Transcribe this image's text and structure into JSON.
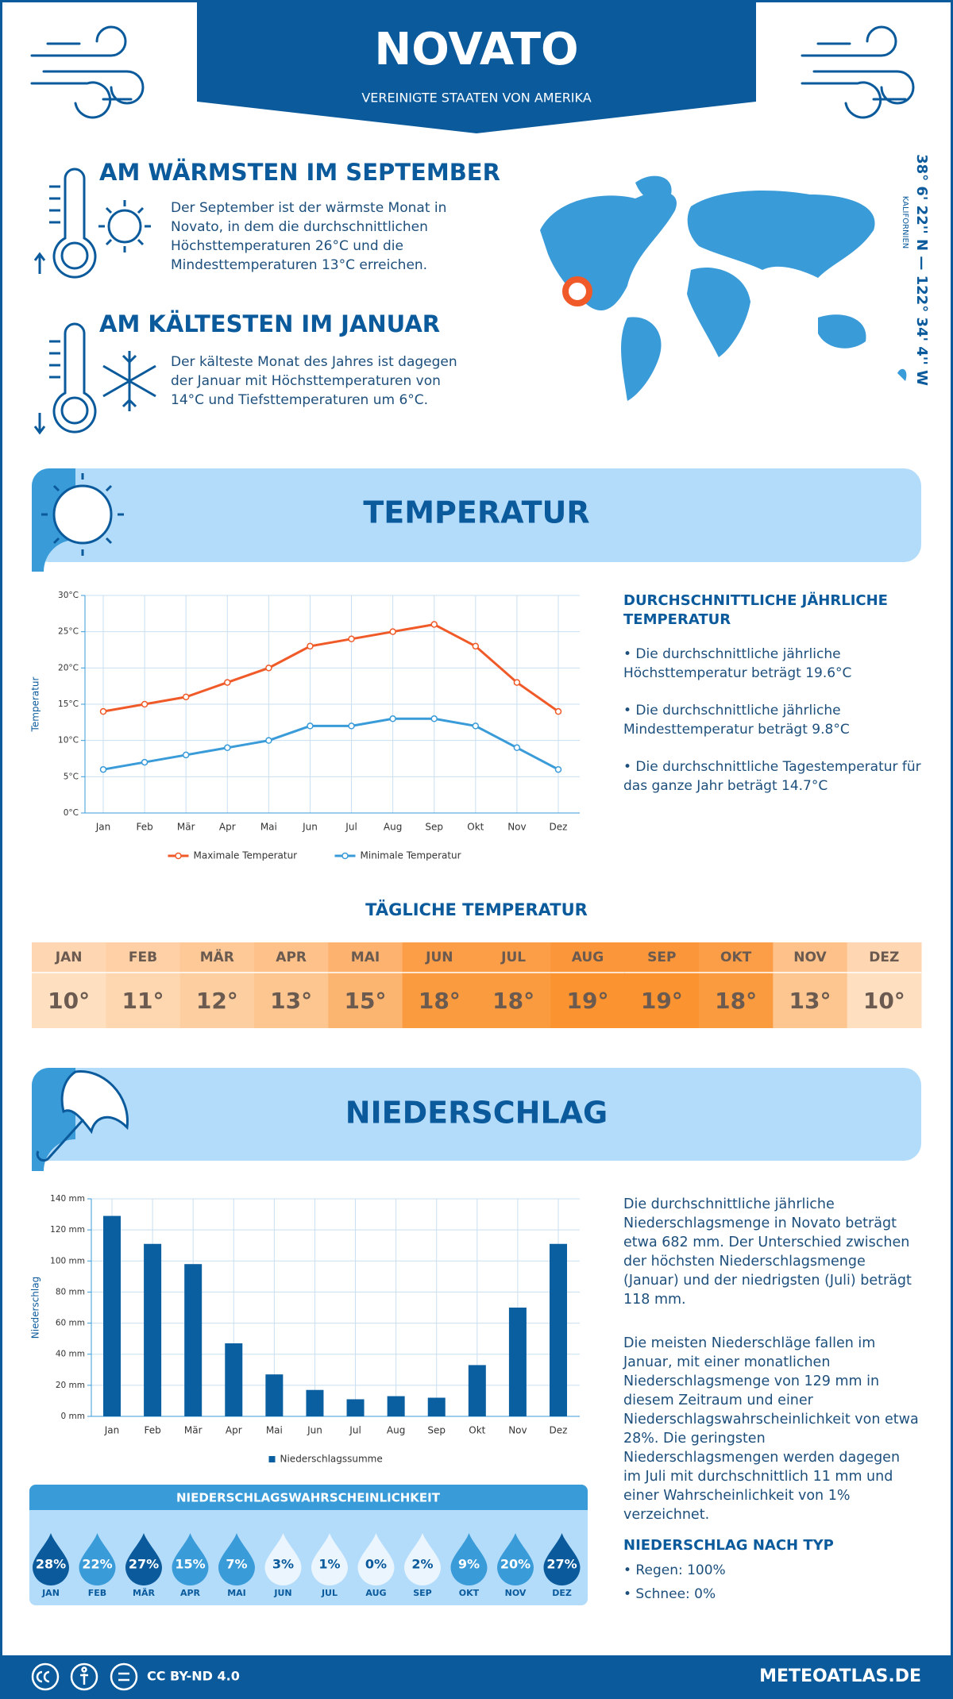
{
  "header": {
    "title": "NOVATO",
    "subtitle": "VEREINIGTE STAATEN VON AMERIKA"
  },
  "warmest": {
    "title": "AM WÄRMSTEN IM SEPTEMBER",
    "text": "Der September ist der wärmste Monat in Novato, in dem die durchschnittlichen Höchsttemperaturen 26°C und die Mindesttemperaturen 13°C erreichen."
  },
  "coldest": {
    "title": "AM KÄLTESTEN IM JANUAR",
    "text": "Der kälteste Monat des Jahres ist dagegen der Januar mit Höchsttemperaturen von 14°C und Tiefsttemperaturen um 6°C."
  },
  "location": {
    "coordinates": "38° 6' 22'' N — 122° 34' 4'' W",
    "region": "KALIFORNIEN"
  },
  "temperature": {
    "title": "TEMPERATUR",
    "stats_title": "DURCHSCHNITTLICHE JÄHRLICHE TEMPERATUR",
    "stats": [
      "• Die durchschnittliche jährliche Höchsttemperatur beträgt 19.6°C",
      "• Die durchschnittliche jährliche Mindesttemperatur beträgt 9.8°C",
      "• Die durchschnittliche Tagestemperatur für das ganze Jahr beträgt 14.7°C"
    ]
  },
  "chart_data": [
    {
      "type": "line",
      "ylabel": "Temperatur",
      "categories": [
        "Jan",
        "Feb",
        "Mär",
        "Apr",
        "Mai",
        "Jun",
        "Jul",
        "Aug",
        "Sep",
        "Okt",
        "Nov",
        "Dez"
      ],
      "series": [
        {
          "name": "Maximale Temperatur",
          "color": "#f05a28",
          "values": [
            14,
            15,
            16,
            18,
            20,
            23,
            24,
            25,
            26,
            23,
            18,
            14
          ]
        },
        {
          "name": "Minimale Temperatur",
          "color": "#3a9bd9",
          "values": [
            6,
            7,
            8,
            9,
            10,
            12,
            12,
            13,
            13,
            12,
            9,
            6
          ]
        }
      ],
      "ylim": [
        0,
        30
      ],
      "yticks": [
        {
          "value": 0,
          "label": "0°C"
        },
        {
          "value": 5,
          "label": "5°C"
        },
        {
          "value": 10,
          "label": "10°C"
        },
        {
          "value": 15,
          "label": "15°C"
        },
        {
          "value": 20,
          "label": "20°C"
        },
        {
          "value": 25,
          "label": "25°C"
        },
        {
          "value": 30,
          "label": "30°C"
        }
      ],
      "grid": true
    },
    {
      "type": "bar",
      "ylabel": "Niederschlag",
      "categories": [
        "Jan",
        "Feb",
        "Mär",
        "Apr",
        "Mai",
        "Jun",
        "Jul",
        "Aug",
        "Sep",
        "Okt",
        "Nov",
        "Dez"
      ],
      "series": [
        {
          "name": "Niederschlagssumme",
          "color": "#0a5fa0",
          "values": [
            129,
            111,
            98,
            47,
            27,
            17,
            11,
            13,
            12,
            33,
            70,
            111
          ]
        }
      ],
      "ylim": [
        0,
        140
      ],
      "yticks": [
        {
          "value": 0,
          "label": "0 mm"
        },
        {
          "value": 20,
          "label": "20 mm"
        },
        {
          "value": 40,
          "label": "40 mm"
        },
        {
          "value": 60,
          "label": "60 mm"
        },
        {
          "value": 80,
          "label": "80 mm"
        },
        {
          "value": 100,
          "label": "100 mm"
        },
        {
          "value": 120,
          "label": "120 mm"
        },
        {
          "value": 140,
          "label": "140 mm"
        }
      ],
      "grid": true
    }
  ],
  "daily_temperature": {
    "title": "TÄGLICHE TEMPERATUR",
    "months": [
      "JAN",
      "FEB",
      "MÄR",
      "APR",
      "MAI",
      "JUN",
      "JUL",
      "AUG",
      "SEP",
      "OKT",
      "NOV",
      "DEZ"
    ],
    "values": [
      10,
      11,
      12,
      13,
      15,
      18,
      18,
      19,
      19,
      18,
      13,
      10
    ],
    "value_labels": [
      "10°",
      "11°",
      "12°",
      "13°",
      "15°",
      "18°",
      "18°",
      "19°",
      "19°",
      "18°",
      "13°",
      "10°"
    ]
  },
  "precipitation": {
    "title": "NIEDERSCHLAG",
    "paragraphs": [
      "Die durchschnittliche jährliche Niederschlagsmenge in Novato beträgt etwa 682 mm. Der Unterschied zwischen der höchsten Niederschlagsmenge (Januar) und der niedrigsten (Juli) beträgt 118 mm.",
      "Die meisten Niederschläge fallen im Januar, mit einer monatlichen Niederschlagsmenge von 129 mm in diesem Zeitraum und einer Niederschlagswahrscheinlichkeit von etwa 28%. Die geringsten Niederschlagsmengen werden dagegen im Juli mit durchschnittlich 11 mm und einer Wahrscheinlichkeit von 1% verzeichnet."
    ],
    "type_title": "NIEDERSCHLAG NACH TYP",
    "types": [
      "• Regen: 100%",
      "• Schnee: 0%"
    ]
  },
  "precipitation_probability": {
    "title": "NIEDERSCHLAGSWAHRSCHEINLICHKEIT",
    "months": [
      "JAN",
      "FEB",
      "MÄR",
      "APR",
      "MAI",
      "JUN",
      "JUL",
      "AUG",
      "SEP",
      "OKT",
      "NOV",
      "DEZ"
    ],
    "values": [
      28,
      22,
      27,
      15,
      7,
      3,
      1,
      0,
      2,
      9,
      20,
      27
    ],
    "value_labels": [
      "28%",
      "22%",
      "27%",
      "15%",
      "7%",
      "3%",
      "1%",
      "0%",
      "2%",
      "9%",
      "20%",
      "27%"
    ]
  },
  "footer": {
    "license": "CC BY-ND 4.0",
    "site": "METEOATLAS.DE"
  }
}
